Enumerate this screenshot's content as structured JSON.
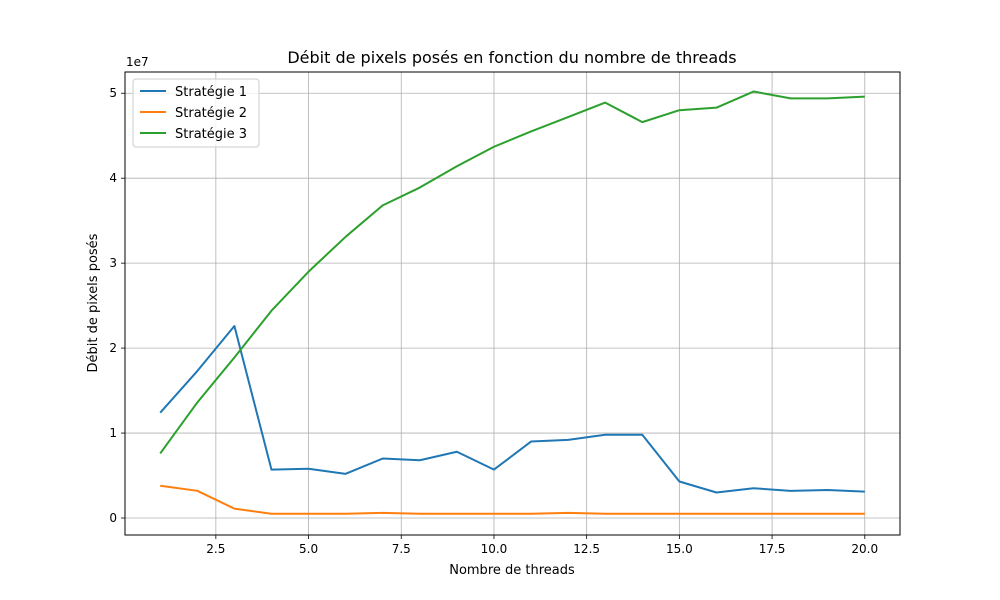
{
  "chart_data": {
    "type": "line",
    "title": "Débit de pixels posés en fonction du nombre de threads",
    "xlabel": "Nombre de threads",
    "ylabel": "Débit de pixels posés",
    "y_scale_factor_label": "1e7",
    "xlim": [
      0.05,
      20.95
    ],
    "ylim": [
      -2000000,
      52500000
    ],
    "x_ticks": [
      2.5,
      5.0,
      7.5,
      10.0,
      12.5,
      15.0,
      17.5,
      20.0
    ],
    "x_tick_labels": [
      "2.5",
      "5.0",
      "7.5",
      "10.0",
      "12.5",
      "15.0",
      "17.5",
      "20.0"
    ],
    "y_ticks": [
      0,
      10000000,
      20000000,
      30000000,
      40000000,
      50000000
    ],
    "y_tick_labels": [
      "0",
      "1",
      "2",
      "3",
      "4",
      "5"
    ],
    "grid": true,
    "legend_position": "top-left",
    "x": [
      1,
      2,
      3,
      4,
      5,
      6,
      7,
      8,
      9,
      10,
      11,
      12,
      13,
      14,
      15,
      16,
      17,
      18,
      19,
      20
    ],
    "series": [
      {
        "name": "Stratégie 1",
        "color": "#1f77b4",
        "values": [
          12400000,
          17300000,
          22600000,
          5700000,
          5800000,
          5200000,
          7000000,
          6800000,
          7800000,
          5700000,
          9000000,
          9200000,
          9800000,
          9800000,
          4300000,
          3000000,
          3500000,
          3200000,
          3300000,
          3100000
        ]
      },
      {
        "name": "Stratégie 2",
        "color": "#ff7f0e",
        "values": [
          3800000,
          3200000,
          1100000,
          500000,
          500000,
          500000,
          600000,
          500000,
          500000,
          500000,
          500000,
          600000,
          500000,
          500000,
          500000,
          500000,
          500000,
          500000,
          500000,
          500000
        ]
      },
      {
        "name": "Stratégie 3",
        "color": "#2ca02c",
        "values": [
          7600000,
          13600000,
          18900000,
          24400000,
          29000000,
          33100000,
          36800000,
          38900000,
          41400000,
          43700000,
          45500000,
          47200000,
          48900000,
          46600000,
          48000000,
          48300000,
          50200000,
          49400000,
          49400000,
          49600000
        ]
      }
    ]
  }
}
